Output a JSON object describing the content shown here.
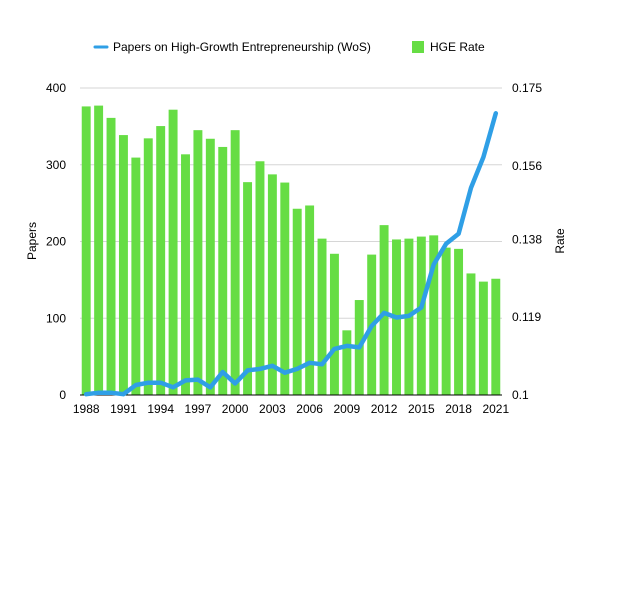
{
  "chart_data": {
    "type": "bar+line",
    "title": "",
    "legend": {
      "position": "top",
      "entries": [
        {
          "label": "Papers on High-Growth Entrepreneurship (WoS)",
          "color": "#2f9fe6",
          "kind": "line"
        },
        {
          "label": "HGE Rate",
          "color": "#66dd44",
          "kind": "bar"
        }
      ]
    },
    "years": [
      1988,
      1989,
      1990,
      1991,
      1992,
      1993,
      1994,
      1995,
      1996,
      1997,
      1998,
      1999,
      2000,
      2001,
      2002,
      2003,
      2004,
      2005,
      2006,
      2007,
      2008,
      2009,
      2010,
      2011,
      2012,
      2013,
      2014,
      2015,
      2016,
      2017,
      2018,
      2019,
      2020,
      2021
    ],
    "x_tick_labels": [
      "1988",
      "1991",
      "1994",
      "1997",
      "2000",
      "2003",
      "2006",
      "2009",
      "2012",
      "2015",
      "2018",
      "2021"
    ],
    "left_axis": {
      "label": "Papers",
      "ylim": [
        0,
        400
      ],
      "ticks": [
        "0",
        "100",
        "200",
        "300",
        "400"
      ],
      "tick_values": [
        0,
        100,
        200,
        300,
        400
      ]
    },
    "right_axis": {
      "label": "Rate",
      "ylim": [
        0.1,
        0.175
      ],
      "ticks": [
        "0.1",
        "0.119",
        "0.138",
        "0.156",
        "0.175"
      ],
      "tick_values": [
        0.1,
        0.119,
        0.138,
        0.156,
        0.175
      ]
    },
    "grid": true,
    "series": [
      {
        "name": "HGE Rate",
        "type": "bar",
        "axis": "right",
        "color": "#66dd44",
        "values": [
          0.1705,
          0.1707,
          0.1677,
          0.1635,
          0.158,
          0.1627,
          0.1657,
          0.1697,
          0.1588,
          0.1647,
          0.1626,
          0.1606,
          0.1647,
          0.152,
          0.1571,
          0.1539,
          0.1519,
          0.1455,
          0.1463,
          0.1382,
          0.1345,
          0.1158,
          0.1232,
          0.1343,
          0.1415,
          0.138,
          0.1382,
          0.1387,
          0.139,
          0.136,
          0.1357,
          0.1297,
          0.1277,
          0.1284
        ]
      },
      {
        "name": "Papers on High-Growth Entrepreneurship (WoS)",
        "type": "line",
        "axis": "left",
        "color": "#2f9fe6",
        "values": [
          1,
          3,
          3,
          1,
          13,
          16,
          16,
          10,
          19,
          20,
          10,
          30,
          15,
          32,
          34,
          38,
          29,
          34,
          42,
          40,
          60,
          64,
          62,
          90,
          107,
          101,
          103,
          114,
          170,
          197,
          210,
          270,
          310,
          367
        ]
      }
    ]
  }
}
